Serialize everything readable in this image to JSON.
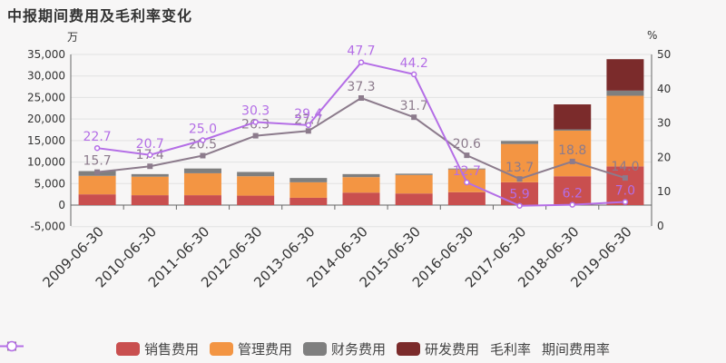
{
  "title": "中报期间费用及毛利率变化",
  "left_unit": "万",
  "right_unit": "%",
  "chart_data": {
    "type": "bar",
    "categories": [
      "2009-06-30",
      "2010-06-30",
      "2011-06-30",
      "2012-06-30",
      "2013-06-30",
      "2014-06-30",
      "2015-06-30",
      "2016-06-30",
      "2017-06-30",
      "2018-06-30",
      "2019-06-30"
    ],
    "left_axis": {
      "ticks": [
        -5000,
        0,
        5000,
        10000,
        15000,
        20000,
        25000,
        30000,
        35000
      ],
      "tick_labels": [
        "-5,000",
        "0",
        "5,000",
        "10,000",
        "15,000",
        "20,000",
        "25,000",
        "30,000",
        "35,000"
      ],
      "ylim": [
        -5000,
        35000
      ]
    },
    "right_axis": {
      "ticks": [
        0,
        10,
        20,
        30,
        40,
        50
      ],
      "ylim": [
        0,
        50
      ]
    },
    "bar_series": [
      {
        "name": "销售费用",
        "color": "#c94f4f",
        "values": [
          2500,
          2300,
          2300,
          2200,
          1700,
          2900,
          2700,
          3000,
          5300,
          6700,
          9000
        ]
      },
      {
        "name": "管理费用",
        "color": "#f39543",
        "values": [
          4300,
          4300,
          5100,
          4500,
          3600,
          3600,
          4300,
          5300,
          8900,
          10600,
          16400
        ]
      },
      {
        "name": "财务费用",
        "color": "#7f7f7f",
        "values": [
          1100,
          600,
          1100,
          1000,
          1000,
          700,
          300,
          200,
          700,
          300,
          1200
        ]
      },
      {
        "name": "研发费用",
        "color": "#7b2b2b",
        "values": [
          0,
          0,
          0,
          0,
          0,
          0,
          0,
          0,
          0,
          5800,
          7300
        ]
      }
    ],
    "line_series": [
      {
        "name": "毛利率",
        "color": "#8c7b8c",
        "marker": "square",
        "values": [
          15.7,
          17.4,
          20.5,
          26.3,
          27.7,
          37.3,
          31.7,
          20.6,
          13.7,
          18.8,
          14.0
        ],
        "labels": [
          "15.7",
          "17.4",
          "20.5",
          "26.3",
          "27.7",
          "37.3",
          "31.7",
          "20.6",
          "13.7",
          "18.8",
          "14.0"
        ]
      },
      {
        "name": "期间费用率",
        "color": "#b46ee6",
        "marker": "circle",
        "values": [
          22.7,
          20.7,
          25.0,
          30.3,
          29.4,
          47.7,
          44.2,
          12.7,
          5.9,
          6.2,
          7.0
        ],
        "labels": [
          "22.7",
          "20.7",
          "25.0",
          "30.3",
          "29.4",
          "47.7",
          "44.2",
          "12.7",
          "5.9",
          "6.2",
          "7.0"
        ]
      }
    ]
  }
}
